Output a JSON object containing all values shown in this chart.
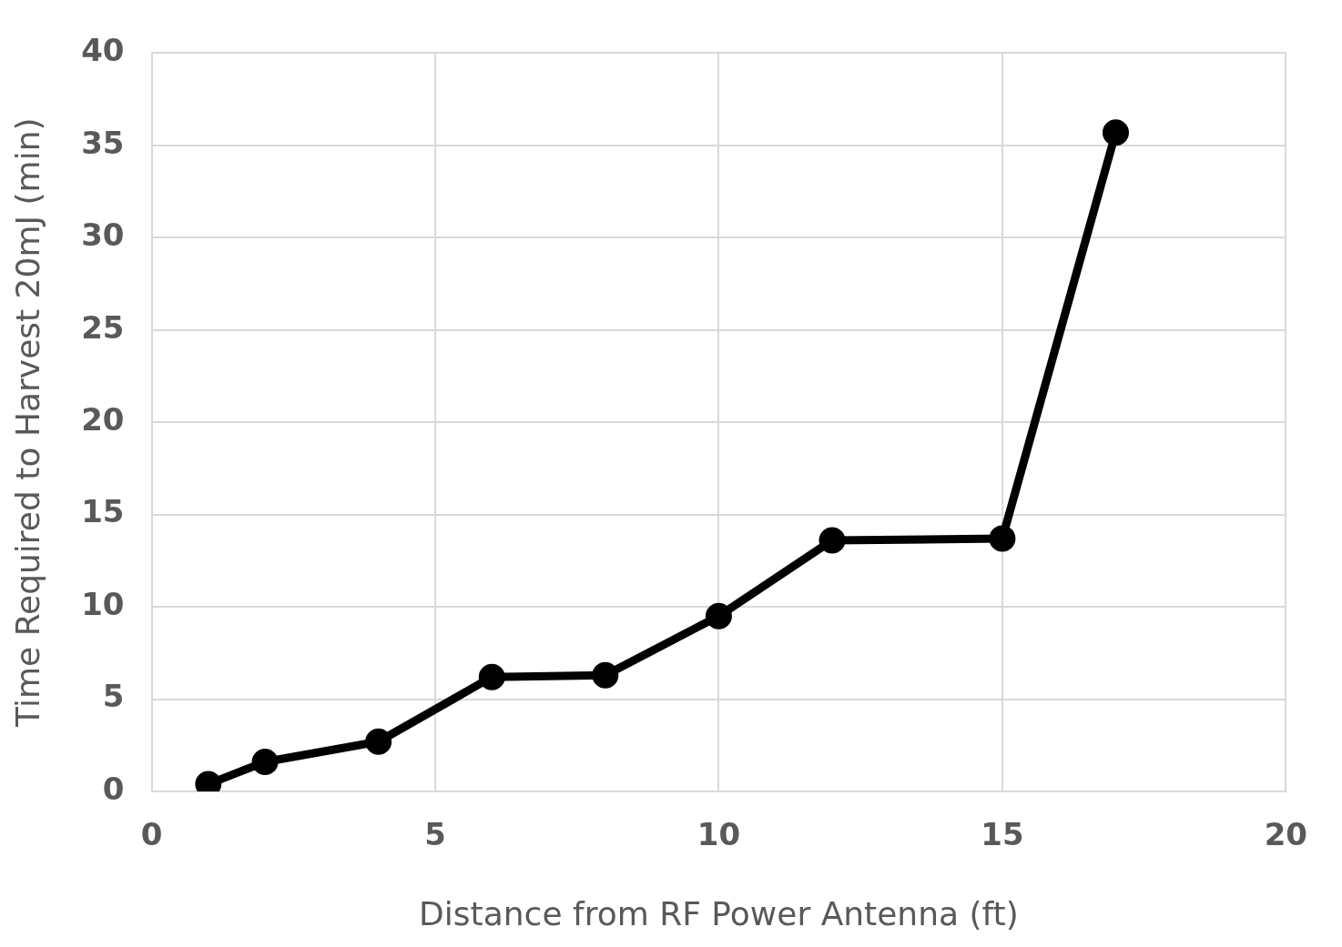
{
  "chart_data": {
    "type": "line",
    "xlabel": "Distance from RF Power Antenna (ft)",
    "ylabel": "Time Required to Harvest 20mJ (min)",
    "x": [
      1,
      2,
      4,
      6,
      8,
      10,
      12,
      15,
      17
    ],
    "series": [
      {
        "color": "#000000",
        "values": [
          0.4,
          1.6,
          2.7,
          6.2,
          6.3,
          9.5,
          13.6,
          13.7,
          35.7
        ]
      }
    ],
    "xlim": [
      0,
      20
    ],
    "xticks": [
      0,
      5,
      10,
      15,
      20
    ],
    "ylim": [
      0,
      40
    ],
    "yticks": [
      0,
      5,
      10,
      15,
      20,
      25,
      30,
      35,
      40
    ],
    "grid": true,
    "legend": false,
    "marker": "circle",
    "line_style": "solid"
  }
}
